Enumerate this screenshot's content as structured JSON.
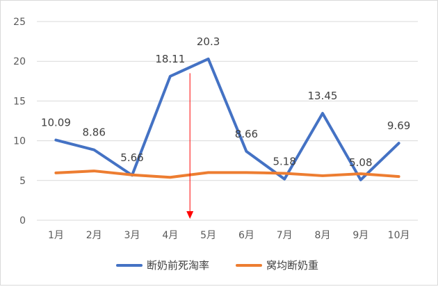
{
  "chart_data": {
    "type": "line",
    "categories": [
      "1月",
      "2月",
      "3月",
      "4月",
      "5月",
      "6月",
      "7月",
      "8月",
      "9月",
      "10月"
    ],
    "series": [
      {
        "name": "断奶前死淘率",
        "values": [
          10.09,
          8.86,
          5.66,
          18.11,
          20.3,
          8.66,
          5.18,
          13.45,
          5.08,
          9.69
        ],
        "labels": [
          "10.09",
          "8.86",
          "5.66",
          "18.11",
          "20.3",
          "8.66",
          "5.18",
          "13.45",
          "5.08",
          "9.69"
        ],
        "color": "#4472C4"
      },
      {
        "name": "窝均断奶重",
        "values": [
          5.95,
          6.2,
          5.7,
          5.4,
          6.0,
          6.0,
          5.9,
          5.6,
          5.85,
          5.5
        ],
        "color": "#ED7D31"
      }
    ],
    "ylim": [
      0,
      25
    ],
    "yticks": [
      0,
      5,
      10,
      15,
      20,
      25
    ],
    "grid": true,
    "legend": "bottom",
    "annotation": {
      "type": "arrow",
      "x_position": "between 4月 and 5月",
      "from_y": 18.5,
      "to_y": 0,
      "color": "#FF0000"
    }
  }
}
